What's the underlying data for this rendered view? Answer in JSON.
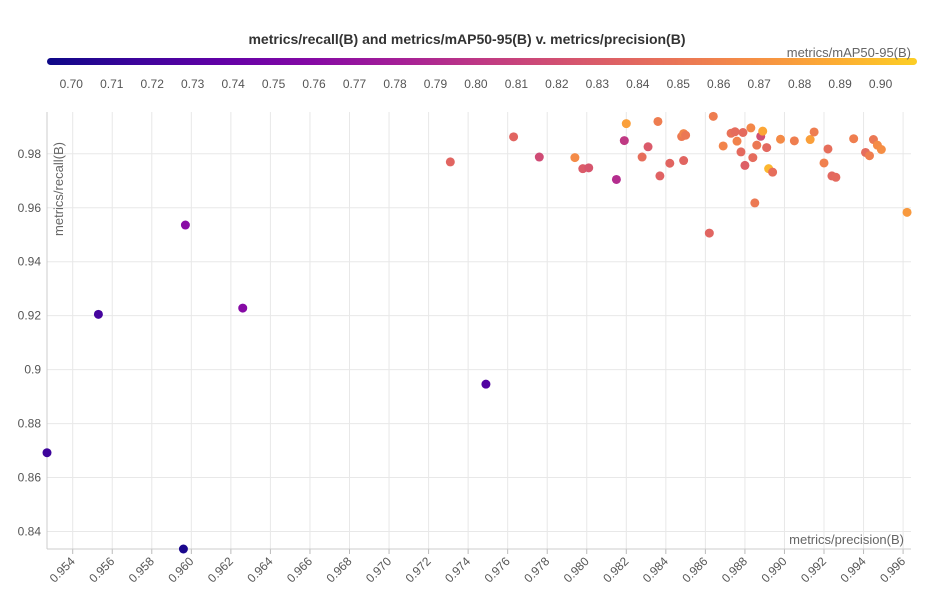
{
  "chart_data": {
    "type": "scatter",
    "title": "metrics/recall(B) and metrics/mAP50-95(B) v. metrics/precision(B)",
    "xlabel": "metrics/precision(B)",
    "ylabel": "metrics/recall(B)",
    "color_label": "metrics/mAP50-95(B)",
    "xlim": [
      0.9527,
      0.9964
    ],
    "ylim": [
      0.8335,
      0.9955
    ],
    "color_range": [
      0.694,
      0.909
    ],
    "x_ticks": [
      0.954,
      0.956,
      0.958,
      0.96,
      0.962,
      0.964,
      0.966,
      0.968,
      0.97,
      0.972,
      0.974,
      0.976,
      0.978,
      0.98,
      0.982,
      0.984,
      0.986,
      0.988,
      0.99,
      0.992,
      0.994,
      0.996
    ],
    "x_tick_labels": [
      "0.954",
      "0.956",
      "0.958",
      "0.960",
      "0.962",
      "0.964",
      "0.966",
      "0.968",
      "0.970",
      "0.972",
      "0.974",
      "0.976",
      "0.978",
      "0.980",
      "0.982",
      "0.984",
      "0.986",
      "0.988",
      "0.990",
      "0.992",
      "0.994",
      "0.996"
    ],
    "y_ticks": [
      0.84,
      0.86,
      0.88,
      0.9,
      0.92,
      0.94,
      0.96,
      0.98
    ],
    "y_tick_labels": [
      "0.84",
      "0.86",
      "0.88",
      "0.9",
      "0.92",
      "0.94",
      "0.96",
      "0.98"
    ],
    "color_ticks": [
      0.7,
      0.71,
      0.72,
      0.73,
      0.74,
      0.75,
      0.76,
      0.77,
      0.78,
      0.79,
      0.8,
      0.81,
      0.82,
      0.83,
      0.84,
      0.85,
      0.86,
      0.87,
      0.88,
      0.89,
      0.9
    ],
    "color_tick_labels": [
      "0.70",
      "0.71",
      "0.72",
      "0.73",
      "0.74",
      "0.75",
      "0.76",
      "0.77",
      "0.78",
      "0.79",
      "0.80",
      "0.81",
      "0.82",
      "0.83",
      "0.84",
      "0.85",
      "0.86",
      "0.87",
      "0.88",
      "0.89",
      "0.90"
    ],
    "colormap": "plasma",
    "grid": true,
    "points": [
      {
        "x": 0.9527,
        "y": 0.8692,
        "c": 0.716
      },
      {
        "x": 0.9553,
        "y": 0.9205,
        "c": 0.72
      },
      {
        "x": 0.9596,
        "y": 0.8335,
        "c": 0.7
      },
      {
        "x": 0.9597,
        "y": 0.9536,
        "c": 0.762
      },
      {
        "x": 0.9626,
        "y": 0.9228,
        "c": 0.76
      },
      {
        "x": 0.9731,
        "y": 0.977,
        "c": 0.838
      },
      {
        "x": 0.9749,
        "y": 0.8946,
        "c": 0.727
      },
      {
        "x": 0.9763,
        "y": 0.9863,
        "c": 0.838
      },
      {
        "x": 0.9776,
        "y": 0.9788,
        "c": 0.817
      },
      {
        "x": 0.9794,
        "y": 0.9786,
        "c": 0.866
      },
      {
        "x": 0.9798,
        "y": 0.9745,
        "c": 0.83
      },
      {
        "x": 0.9801,
        "y": 0.9748,
        "c": 0.825
      },
      {
        "x": 0.9815,
        "y": 0.9705,
        "c": 0.792
      },
      {
        "x": 0.9819,
        "y": 0.9849,
        "c": 0.802
      },
      {
        "x": 0.982,
        "y": 0.9912,
        "c": 0.88
      },
      {
        "x": 0.9828,
        "y": 0.9788,
        "c": 0.845
      },
      {
        "x": 0.9831,
        "y": 0.9826,
        "c": 0.829
      },
      {
        "x": 0.9836,
        "y": 0.992,
        "c": 0.856
      },
      {
        "x": 0.9837,
        "y": 0.9718,
        "c": 0.836
      },
      {
        "x": 0.9842,
        "y": 0.9765,
        "c": 0.838
      },
      {
        "x": 0.9848,
        "y": 0.9864,
        "c": 0.853
      },
      {
        "x": 0.9849,
        "y": 0.9875,
        "c": 0.862
      },
      {
        "x": 0.9849,
        "y": 0.9775,
        "c": 0.838
      },
      {
        "x": 0.985,
        "y": 0.9869,
        "c": 0.852
      },
      {
        "x": 0.9862,
        "y": 0.9506,
        "c": 0.838
      },
      {
        "x": 0.9864,
        "y": 0.9939,
        "c": 0.856
      },
      {
        "x": 0.9869,
        "y": 0.9829,
        "c": 0.861
      },
      {
        "x": 0.9873,
        "y": 0.9876,
        "c": 0.848
      },
      {
        "x": 0.9875,
        "y": 0.9882,
        "c": 0.843
      },
      {
        "x": 0.9876,
        "y": 0.9847,
        "c": 0.86
      },
      {
        "x": 0.9878,
        "y": 0.9807,
        "c": 0.842
      },
      {
        "x": 0.9879,
        "y": 0.9879,
        "c": 0.842
      },
      {
        "x": 0.988,
        "y": 0.9757,
        "c": 0.833
      },
      {
        "x": 0.9883,
        "y": 0.9896,
        "c": 0.863
      },
      {
        "x": 0.9884,
        "y": 0.9786,
        "c": 0.843
      },
      {
        "x": 0.9885,
        "y": 0.9618,
        "c": 0.853
      },
      {
        "x": 0.9886,
        "y": 0.9832,
        "c": 0.852
      },
      {
        "x": 0.9888,
        "y": 0.9865,
        "c": 0.82
      },
      {
        "x": 0.9889,
        "y": 0.9884,
        "c": 0.885
      },
      {
        "x": 0.9891,
        "y": 0.9823,
        "c": 0.84
      },
      {
        "x": 0.9892,
        "y": 0.9745,
        "c": 0.895
      },
      {
        "x": 0.9894,
        "y": 0.9732,
        "c": 0.845
      },
      {
        "x": 0.9898,
        "y": 0.9854,
        "c": 0.866
      },
      {
        "x": 0.9905,
        "y": 0.9848,
        "c": 0.857
      },
      {
        "x": 0.9913,
        "y": 0.9853,
        "c": 0.88
      },
      {
        "x": 0.9915,
        "y": 0.9881,
        "c": 0.856
      },
      {
        "x": 0.992,
        "y": 0.9766,
        "c": 0.858
      },
      {
        "x": 0.9922,
        "y": 0.9818,
        "c": 0.845
      },
      {
        "x": 0.9924,
        "y": 0.9718,
        "c": 0.84
      },
      {
        "x": 0.9926,
        "y": 0.9713,
        "c": 0.842
      },
      {
        "x": 0.9935,
        "y": 0.9856,
        "c": 0.857
      },
      {
        "x": 0.9941,
        "y": 0.9805,
        "c": 0.843
      },
      {
        "x": 0.9943,
        "y": 0.9793,
        "c": 0.857
      },
      {
        "x": 0.9945,
        "y": 0.9853,
        "c": 0.852
      },
      {
        "x": 0.9947,
        "y": 0.9832,
        "c": 0.866
      },
      {
        "x": 0.9949,
        "y": 0.9816,
        "c": 0.868
      },
      {
        "x": 0.9962,
        "y": 0.9583,
        "c": 0.876
      }
    ]
  }
}
